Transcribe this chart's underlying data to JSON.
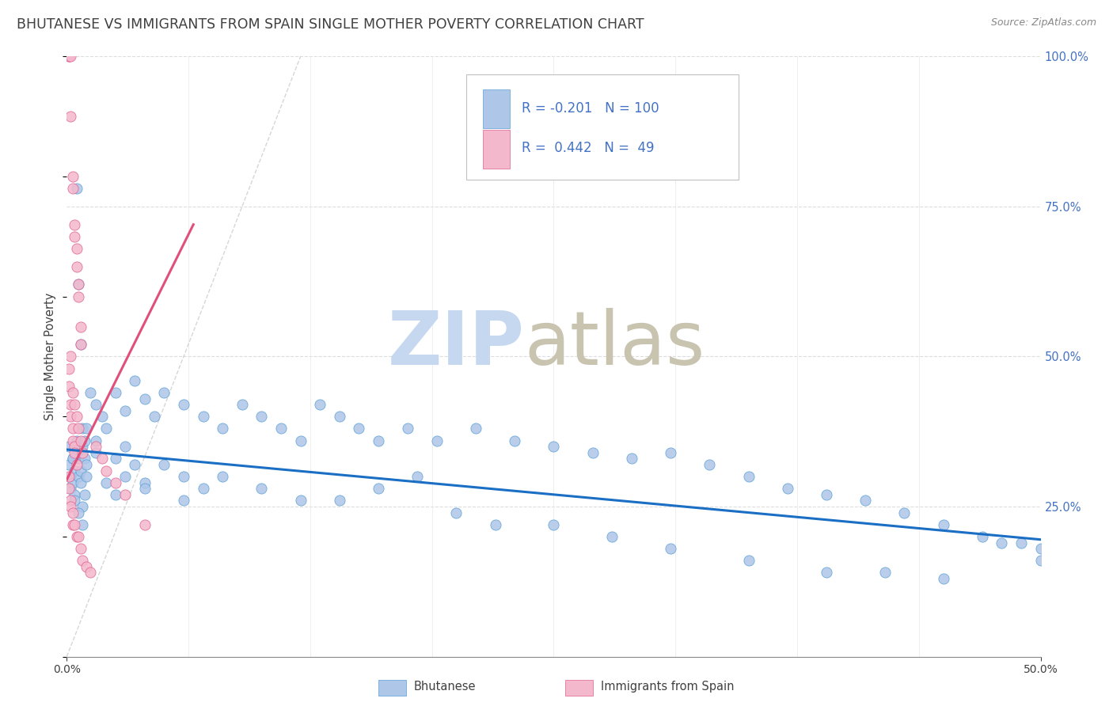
{
  "title": "BHUTANESE VS IMMIGRANTS FROM SPAIN SINGLE MOTHER POVERTY CORRELATION CHART",
  "source": "Source: ZipAtlas.com",
  "ylabel": "Single Mother Poverty",
  "legend_blue_r": "-0.201",
  "legend_blue_n": "100",
  "legend_pink_r": "0.442",
  "legend_pink_n": "49",
  "legend_label_blue": "Bhutanese",
  "legend_label_pink": "Immigrants from Spain",
  "blue_fill": "#aec6e8",
  "pink_fill": "#f4b8cc",
  "blue_edge": "#5a9fd4",
  "pink_edge": "#e06090",
  "line_blue": "#1a6fc4",
  "line_pink": "#e0507a",
  "line_ref_color": "#c8c8c8",
  "text_color": "#404040",
  "axis_blue": "#4472c4",
  "grid_color": "#dddddd",
  "background": "#ffffff",
  "watermark_zip_color": "#c5d8ef",
  "watermark_atlas_color": "#c8c4b0",
  "blue_x": [
    0.001,
    0.001,
    0.002,
    0.002,
    0.003,
    0.003,
    0.004,
    0.004,
    0.005,
    0.005,
    0.006,
    0.006,
    0.007,
    0.007,
    0.008,
    0.008,
    0.009,
    0.009,
    0.01,
    0.01,
    0.012,
    0.015,
    0.018,
    0.02,
    0.025,
    0.03,
    0.035,
    0.04,
    0.045,
    0.05,
    0.06,
    0.07,
    0.08,
    0.09,
    0.1,
    0.11,
    0.12,
    0.13,
    0.14,
    0.15,
    0.16,
    0.175,
    0.19,
    0.21,
    0.23,
    0.25,
    0.27,
    0.29,
    0.31,
    0.33,
    0.35,
    0.37,
    0.39,
    0.41,
    0.43,
    0.45,
    0.47,
    0.49,
    0.5,
    0.005,
    0.006,
    0.007,
    0.008,
    0.009,
    0.015,
    0.02,
    0.025,
    0.03,
    0.035,
    0.04,
    0.05,
    0.06,
    0.07,
    0.08,
    0.1,
    0.12,
    0.14,
    0.16,
    0.18,
    0.2,
    0.22,
    0.25,
    0.28,
    0.31,
    0.35,
    0.39,
    0.42,
    0.45,
    0.48,
    0.5,
    0.003,
    0.004,
    0.006,
    0.008,
    0.01,
    0.015,
    0.025,
    0.03,
    0.04,
    0.06
  ],
  "blue_y": [
    0.35,
    0.32,
    0.3,
    0.28,
    0.33,
    0.29,
    0.31,
    0.27,
    0.36,
    0.34,
    0.3,
    0.33,
    0.31,
    0.29,
    0.38,
    0.35,
    0.33,
    0.36,
    0.32,
    0.3,
    0.44,
    0.42,
    0.4,
    0.38,
    0.44,
    0.41,
    0.46,
    0.43,
    0.4,
    0.44,
    0.42,
    0.4,
    0.38,
    0.42,
    0.4,
    0.38,
    0.36,
    0.42,
    0.4,
    0.38,
    0.36,
    0.38,
    0.36,
    0.38,
    0.36,
    0.35,
    0.34,
    0.33,
    0.34,
    0.32,
    0.3,
    0.28,
    0.27,
    0.26,
    0.24,
    0.22,
    0.2,
    0.19,
    0.18,
    0.78,
    0.62,
    0.52,
    0.25,
    0.27,
    0.34,
    0.29,
    0.27,
    0.35,
    0.32,
    0.29,
    0.32,
    0.3,
    0.28,
    0.3,
    0.28,
    0.26,
    0.26,
    0.28,
    0.3,
    0.24,
    0.22,
    0.22,
    0.2,
    0.18,
    0.16,
    0.14,
    0.14,
    0.13,
    0.19,
    0.16,
    0.33,
    0.26,
    0.24,
    0.22,
    0.38,
    0.36,
    0.33,
    0.3,
    0.28,
    0.26
  ],
  "pink_x": [
    0.001,
    0.001,
    0.002,
    0.002,
    0.003,
    0.003,
    0.004,
    0.004,
    0.005,
    0.005,
    0.006,
    0.006,
    0.007,
    0.007,
    0.001,
    0.001,
    0.002,
    0.002,
    0.003,
    0.003,
    0.004,
    0.004,
    0.005,
    0.002,
    0.003,
    0.004,
    0.005,
    0.006,
    0.007,
    0.008,
    0.001,
    0.001,
    0.002,
    0.002,
    0.003,
    0.003,
    0.004,
    0.005,
    0.006,
    0.007,
    0.008,
    0.01,
    0.012,
    0.015,
    0.018,
    0.02,
    0.025,
    0.03,
    0.04
  ],
  "pink_y": [
    1.0,
    1.0,
    1.0,
    0.9,
    0.8,
    0.78,
    0.72,
    0.7,
    0.68,
    0.65,
    0.62,
    0.6,
    0.55,
    0.52,
    0.48,
    0.45,
    0.42,
    0.4,
    0.38,
    0.36,
    0.35,
    0.34,
    0.32,
    0.5,
    0.44,
    0.42,
    0.4,
    0.38,
    0.36,
    0.34,
    0.3,
    0.28,
    0.26,
    0.25,
    0.24,
    0.22,
    0.22,
    0.2,
    0.2,
    0.18,
    0.16,
    0.15,
    0.14,
    0.35,
    0.33,
    0.31,
    0.29,
    0.27,
    0.22
  ]
}
